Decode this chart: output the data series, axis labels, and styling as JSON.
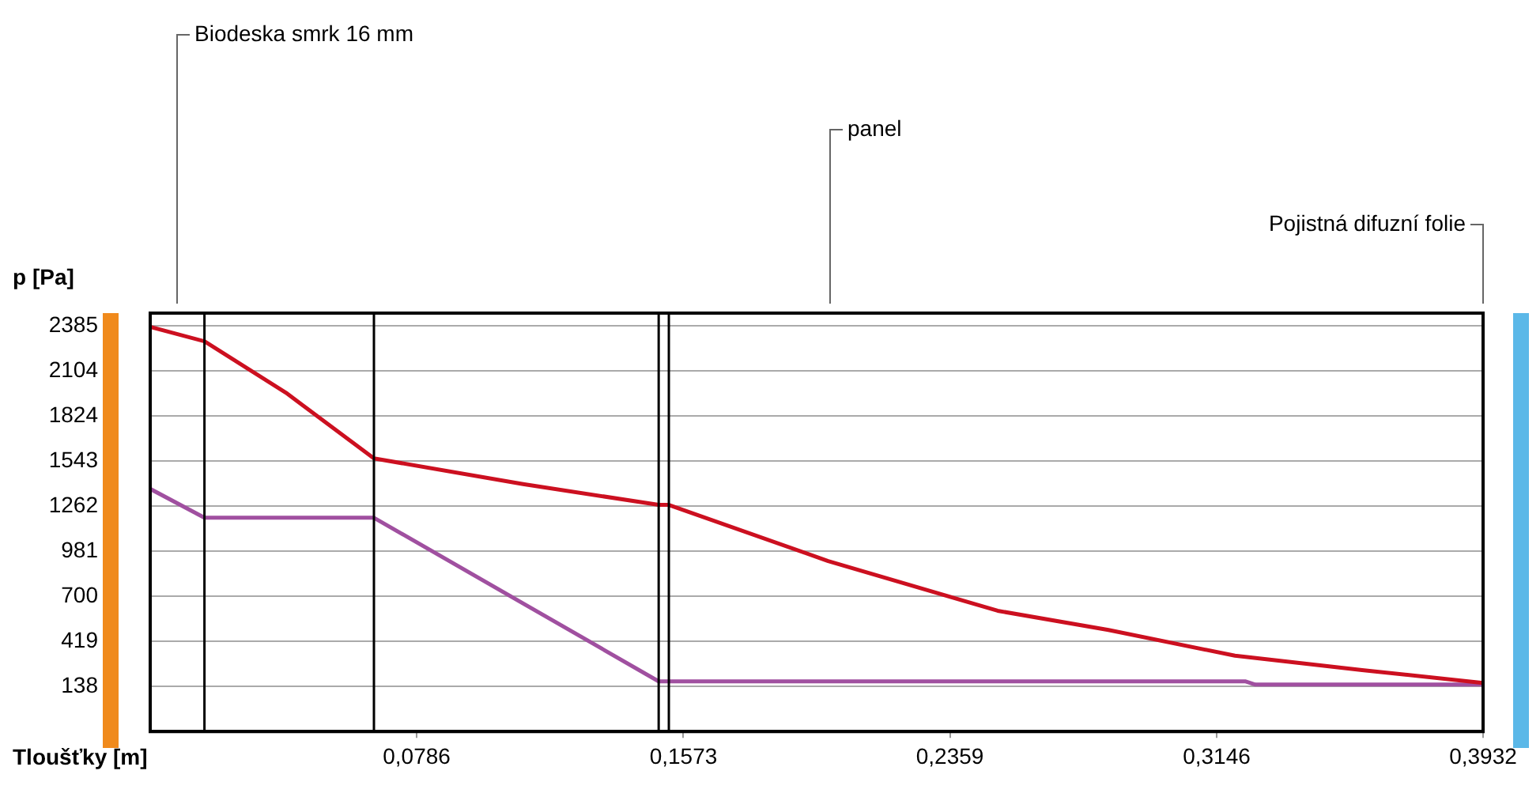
{
  "chart_data": {
    "type": "line",
    "xlabel": "Tloušťky [m]",
    "ylabel": "p [Pa]",
    "xlim": [
      0,
      0.3932
    ],
    "ylim": [
      -143,
      2466
    ],
    "xticks": [
      {
        "value": 0.0786,
        "label": "0,0786"
      },
      {
        "value": 0.1573,
        "label": "0,1573"
      },
      {
        "value": 0.2359,
        "label": "0,2359"
      },
      {
        "value": 0.3146,
        "label": "0,3146"
      },
      {
        "value": 0.3932,
        "label": "0,3932"
      }
    ],
    "yticks": [
      138,
      419,
      700,
      981,
      1262,
      1543,
      1824,
      2104,
      2385
    ],
    "grid": "y",
    "series": [
      {
        "color": "#cc1020",
        "x": [
          0,
          0.016,
          0.04,
          0.066,
          0.11,
          0.15,
          0.153,
          0.2,
          0.25,
          0.2827,
          0.32,
          0.3575,
          0.3932
        ],
        "values": [
          2380,
          2290,
          1970,
          1560,
          1400,
          1270,
          1270,
          920,
          610,
          490,
          330,
          240,
          160
        ]
      },
      {
        "color": "#a050a0",
        "x": [
          0,
          0.016,
          0.066,
          0.15,
          0.153,
          0.323,
          0.326,
          0.3932
        ],
        "values": [
          1370,
          1190,
          1190,
          170,
          170,
          170,
          150,
          150
        ]
      }
    ],
    "ref_lines": [
      {
        "axis": "x",
        "value": 0.016,
        "color": "#000000"
      },
      {
        "axis": "x",
        "value": 0.066,
        "color": "#000000"
      },
      {
        "axis": "x",
        "value": 0.15,
        "color": "#000000"
      },
      {
        "axis": "x",
        "value": 0.153,
        "color": "#000000"
      }
    ],
    "annotations": [
      "Biodeska smrk 16 mm",
      "panel",
      "Pojistná difuzní folie"
    ]
  }
}
